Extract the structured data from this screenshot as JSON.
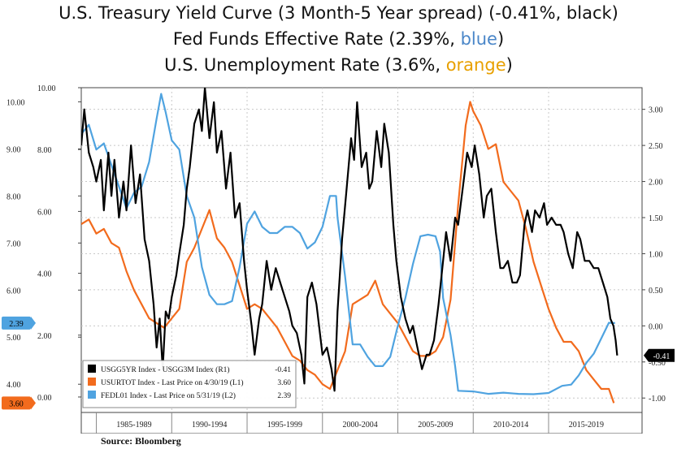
{
  "titles": {
    "line1": "U.S. Treasury Yield Curve (3 Month-5 Year spread) (-0.41%, black)",
    "line2_prefix": "Fed Funds Effective Rate (2.39%, ",
    "line2_highlight": "blue",
    "line2_suffix": ")",
    "line3_prefix": "U.S. Unemployment Rate (3.6%, ",
    "line3_highlight": "orange",
    "line3_suffix": ")"
  },
  "source": "Source: Bloomberg",
  "chart_data": {
    "type": "line",
    "title": "",
    "x_range": [
      1984.0,
      2021.2
    ],
    "x_labels": [
      "1985-1989",
      "1990-1994",
      "1995-1999",
      "2000-2004",
      "2005-2009",
      "2010-2014",
      "2015-2019"
    ],
    "left_axis_unemployment": {
      "range": [
        3.4,
        10.3
      ],
      "ticks": [
        "10.00",
        "9.00",
        "8.00",
        "7.00",
        "6.00",
        "5.00",
        "4.00"
      ]
    },
    "left_axis_fedfunds": {
      "range": [
        -0.5,
        10.0
      ],
      "ticks": [
        "10.00",
        "8.00",
        "6.00",
        "4.00",
        "2.00",
        "0.00"
      ]
    },
    "right_axis_spread": {
      "range": [
        -1.2,
        3.3
      ],
      "ticks": [
        "3.00",
        "2.50",
        "2.00",
        "1.50",
        "1.00",
        "0.50",
        "0.00",
        "-0.50",
        "-1.00"
      ]
    },
    "grid": true,
    "legend_position": "bottom-left",
    "last_value_tags": {
      "fedfunds": "2.39",
      "unemployment": "3.60",
      "spread": "-0.41"
    },
    "legend": [
      {
        "label": "USGG5YR Index - USGG3M Index (R1)",
        "value": "-0.41",
        "color": "#000000"
      },
      {
        "label": "USURTOT Index - Last Price on 4/30/19 (L1)",
        "value": "3.60",
        "color": "#f26b1d"
      },
      {
        "label": "FEDL01 Index - Last Price on 5/31/19 (L2)",
        "value": "2.39",
        "color": "#4fa3e0"
      }
    ],
    "series": [
      {
        "name": "USGG5YR Index - USGG3M Index",
        "axis": "right",
        "color": "#000000",
        "points": [
          [
            1984.0,
            2.5
          ],
          [
            1984.2,
            3.0
          ],
          [
            1984.5,
            2.4
          ],
          [
            1984.8,
            2.2
          ],
          [
            1985.0,
            2.0
          ],
          [
            1985.3,
            2.3
          ],
          [
            1985.5,
            1.6
          ],
          [
            1985.8,
            2.4
          ],
          [
            1986.0,
            1.8
          ],
          [
            1986.2,
            2.3
          ],
          [
            1986.5,
            1.5
          ],
          [
            1986.8,
            2.0
          ],
          [
            1987.0,
            1.6
          ],
          [
            1987.3,
            2.5
          ],
          [
            1987.6,
            1.7
          ],
          [
            1987.9,
            2.1
          ],
          [
            1988.2,
            1.2
          ],
          [
            1988.5,
            0.9
          ],
          [
            1988.8,
            0.3
          ],
          [
            1989.0,
            -0.3
          ],
          [
            1989.2,
            0.1
          ],
          [
            1989.4,
            -0.6
          ],
          [
            1989.6,
            0.2
          ],
          [
            1989.8,
            0.1
          ],
          [
            1990.0,
            0.4
          ],
          [
            1990.3,
            0.7
          ],
          [
            1990.5,
            1.0
          ],
          [
            1990.8,
            1.4
          ],
          [
            1991.0,
            1.9
          ],
          [
            1991.2,
            2.2
          ],
          [
            1991.5,
            2.8
          ],
          [
            1991.8,
            3.0
          ],
          [
            1992.0,
            2.7
          ],
          [
            1992.2,
            3.3
          ],
          [
            1992.5,
            2.6
          ],
          [
            1992.8,
            3.1
          ],
          [
            1993.0,
            2.4
          ],
          [
            1993.3,
            2.7
          ],
          [
            1993.6,
            1.9
          ],
          [
            1993.9,
            2.4
          ],
          [
            1994.2,
            1.5
          ],
          [
            1994.5,
            1.7
          ],
          [
            1994.8,
            0.9
          ],
          [
            1995.0,
            0.5
          ],
          [
            1995.3,
            0.0
          ],
          [
            1995.5,
            -0.4
          ],
          [
            1995.8,
            0.1
          ],
          [
            1996.0,
            0.3
          ],
          [
            1996.3,
            0.9
          ],
          [
            1996.6,
            0.5
          ],
          [
            1996.9,
            0.8
          ],
          [
            1997.2,
            0.6
          ],
          [
            1997.5,
            0.4
          ],
          [
            1997.8,
            0.2
          ],
          [
            1998.0,
            0.0
          ],
          [
            1998.3,
            -0.1
          ],
          [
            1998.6,
            -0.4
          ],
          [
            1998.8,
            -0.8
          ],
          [
            1999.0,
            0.4
          ],
          [
            1999.3,
            0.6
          ],
          [
            1999.6,
            0.3
          ],
          [
            2000.0,
            -0.4
          ],
          [
            2000.3,
            -0.3
          ],
          [
            2000.6,
            -0.6
          ],
          [
            2000.8,
            -0.9
          ],
          [
            2001.0,
            0.2
          ],
          [
            2001.3,
            1.2
          ],
          [
            2001.6,
            1.9
          ],
          [
            2001.9,
            2.6
          ],
          [
            2002.1,
            2.3
          ],
          [
            2002.3,
            3.1
          ],
          [
            2002.6,
            2.2
          ],
          [
            2002.9,
            2.4
          ],
          [
            2003.1,
            1.9
          ],
          [
            2003.3,
            2.0
          ],
          [
            2003.6,
            2.7
          ],
          [
            2003.9,
            2.2
          ],
          [
            2004.1,
            2.8
          ],
          [
            2004.4,
            2.4
          ],
          [
            2004.7,
            1.4
          ],
          [
            2004.9,
            0.9
          ],
          [
            2005.2,
            0.4
          ],
          [
            2005.5,
            0.1
          ],
          [
            2005.8,
            -0.1
          ],
          [
            2006.0,
            0.0
          ],
          [
            2006.3,
            -0.3
          ],
          [
            2006.6,
            -0.6
          ],
          [
            2006.9,
            -0.4
          ],
          [
            2007.1,
            -0.4
          ],
          [
            2007.4,
            -0.2
          ],
          [
            2007.7,
            0.3
          ],
          [
            2008.0,
            0.9
          ],
          [
            2008.2,
            1.3
          ],
          [
            2008.5,
            0.9
          ],
          [
            2008.8,
            1.5
          ],
          [
            2009.0,
            1.4
          ],
          [
            2009.3,
            1.9
          ],
          [
            2009.6,
            2.4
          ],
          [
            2009.9,
            2.2
          ],
          [
            2010.1,
            2.5
          ],
          [
            2010.4,
            2.1
          ],
          [
            2010.7,
            1.5
          ],
          [
            2010.9,
            1.8
          ],
          [
            2011.2,
            1.9
          ],
          [
            2011.5,
            1.3
          ],
          [
            2011.8,
            0.8
          ],
          [
            2012.0,
            0.8
          ],
          [
            2012.3,
            0.9
          ],
          [
            2012.6,
            0.6
          ],
          [
            2012.9,
            0.6
          ],
          [
            2013.1,
            0.7
          ],
          [
            2013.4,
            1.4
          ],
          [
            2013.6,
            1.6
          ],
          [
            2013.9,
            1.3
          ],
          [
            2014.1,
            1.6
          ],
          [
            2014.4,
            1.5
          ],
          [
            2014.7,
            1.7
          ],
          [
            2014.9,
            1.4
          ],
          [
            2015.2,
            1.5
          ],
          [
            2015.5,
            1.4
          ],
          [
            2015.8,
            1.4
          ],
          [
            2016.0,
            1.3
          ],
          [
            2016.3,
            1.0
          ],
          [
            2016.6,
            0.8
          ],
          [
            2016.9,
            1.3
          ],
          [
            2017.1,
            1.2
          ],
          [
            2017.4,
            0.9
          ],
          [
            2017.7,
            0.9
          ],
          [
            2018.0,
            0.8
          ],
          [
            2018.3,
            0.8
          ],
          [
            2018.6,
            0.6
          ],
          [
            2018.9,
            0.4
          ],
          [
            2019.1,
            0.1
          ],
          [
            2019.3,
            0.0
          ],
          [
            2019.45,
            -0.2
          ],
          [
            2019.55,
            -0.41
          ]
        ]
      },
      {
        "name": "USURTOT Index",
        "axis": "left-unemployment",
        "color": "#f26b1d",
        "points": [
          [
            1984.0,
            7.4
          ],
          [
            1984.5,
            7.5
          ],
          [
            1985.0,
            7.2
          ],
          [
            1985.5,
            7.3
          ],
          [
            1986.0,
            7.0
          ],
          [
            1986.5,
            6.9
          ],
          [
            1987.0,
            6.4
          ],
          [
            1987.5,
            6.0
          ],
          [
            1988.0,
            5.7
          ],
          [
            1988.5,
            5.4
          ],
          [
            1989.0,
            5.3
          ],
          [
            1989.5,
            5.2
          ],
          [
            1990.0,
            5.4
          ],
          [
            1990.5,
            5.6
          ],
          [
            1991.0,
            6.6
          ],
          [
            1991.5,
            6.9
          ],
          [
            1992.0,
            7.3
          ],
          [
            1992.5,
            7.7
          ],
          [
            1993.0,
            7.1
          ],
          [
            1993.5,
            6.9
          ],
          [
            1994.0,
            6.6
          ],
          [
            1994.5,
            6.1
          ],
          [
            1995.0,
            5.6
          ],
          [
            1995.5,
            5.7
          ],
          [
            1996.0,
            5.6
          ],
          [
            1996.5,
            5.4
          ],
          [
            1997.0,
            5.2
          ],
          [
            1997.5,
            4.9
          ],
          [
            1998.0,
            4.6
          ],
          [
            1998.5,
            4.5
          ],
          [
            1999.0,
            4.3
          ],
          [
            1999.5,
            4.2
          ],
          [
            2000.0,
            4.0
          ],
          [
            2000.5,
            3.9
          ],
          [
            2001.0,
            4.3
          ],
          [
            2001.5,
            4.7
          ],
          [
            2002.0,
            5.7
          ],
          [
            2002.5,
            5.8
          ],
          [
            2003.0,
            5.9
          ],
          [
            2003.5,
            6.2
          ],
          [
            2004.0,
            5.7
          ],
          [
            2004.5,
            5.5
          ],
          [
            2005.0,
            5.3
          ],
          [
            2005.5,
            5.0
          ],
          [
            2006.0,
            4.7
          ],
          [
            2006.5,
            4.6
          ],
          [
            2007.0,
            4.6
          ],
          [
            2007.5,
            4.7
          ],
          [
            2008.0,
            5.0
          ],
          [
            2008.5,
            5.8
          ],
          [
            2009.0,
            7.8
          ],
          [
            2009.5,
            9.5
          ],
          [
            2009.8,
            10.0
          ],
          [
            2010.0,
            9.8
          ],
          [
            2010.5,
            9.5
          ],
          [
            2011.0,
            9.0
          ],
          [
            2011.5,
            9.1
          ],
          [
            2012.0,
            8.3
          ],
          [
            2012.5,
            8.1
          ],
          [
            2013.0,
            7.9
          ],
          [
            2013.5,
            7.3
          ],
          [
            2014.0,
            6.6
          ],
          [
            2014.5,
            6.1
          ],
          [
            2015.0,
            5.6
          ],
          [
            2015.5,
            5.2
          ],
          [
            2016.0,
            4.9
          ],
          [
            2016.5,
            4.9
          ],
          [
            2017.0,
            4.7
          ],
          [
            2017.5,
            4.3
          ],
          [
            2018.0,
            4.1
          ],
          [
            2018.5,
            3.9
          ],
          [
            2019.0,
            3.9
          ],
          [
            2019.33,
            3.6
          ]
        ]
      },
      {
        "name": "FEDL01 Index",
        "axis": "left-fedfunds",
        "color": "#4fa3e0",
        "points": [
          [
            1984.0,
            8.5
          ],
          [
            1984.5,
            8.8
          ],
          [
            1985.0,
            8.0
          ],
          [
            1985.5,
            8.2
          ],
          [
            1986.0,
            7.5
          ],
          [
            1986.5,
            6.8
          ],
          [
            1987.0,
            6.1
          ],
          [
            1987.5,
            6.6
          ],
          [
            1988.0,
            6.8
          ],
          [
            1988.5,
            7.6
          ],
          [
            1989.0,
            9.0
          ],
          [
            1989.3,
            9.8
          ],
          [
            1989.6,
            9.2
          ],
          [
            1990.0,
            8.3
          ],
          [
            1990.5,
            8.0
          ],
          [
            1991.0,
            6.5
          ],
          [
            1991.5,
            5.8
          ],
          [
            1992.0,
            4.2
          ],
          [
            1992.5,
            3.3
          ],
          [
            1993.0,
            3.0
          ],
          [
            1993.5,
            3.0
          ],
          [
            1994.0,
            3.1
          ],
          [
            1994.5,
            4.2
          ],
          [
            1995.0,
            5.6
          ],
          [
            1995.5,
            6.0
          ],
          [
            1996.0,
            5.5
          ],
          [
            1996.5,
            5.3
          ],
          [
            1997.0,
            5.3
          ],
          [
            1997.5,
            5.5
          ],
          [
            1998.0,
            5.5
          ],
          [
            1998.5,
            5.3
          ],
          [
            1999.0,
            4.8
          ],
          [
            1999.5,
            5.0
          ],
          [
            2000.0,
            5.5
          ],
          [
            2000.5,
            6.5
          ],
          [
            2000.9,
            6.5
          ],
          [
            2001.0,
            5.8
          ],
          [
            2001.5,
            3.9
          ],
          [
            2002.0,
            1.7
          ],
          [
            2002.5,
            1.7
          ],
          [
            2003.0,
            1.3
          ],
          [
            2003.5,
            1.0
          ],
          [
            2004.0,
            1.0
          ],
          [
            2004.5,
            1.3
          ],
          [
            2005.0,
            2.3
          ],
          [
            2005.5,
            3.2
          ],
          [
            2006.0,
            4.3
          ],
          [
            2006.5,
            5.2
          ],
          [
            2007.0,
            5.25
          ],
          [
            2007.5,
            5.2
          ],
          [
            2007.8,
            4.7
          ],
          [
            2008.0,
            3.2
          ],
          [
            2008.5,
            2.0
          ],
          [
            2008.8,
            1.0
          ],
          [
            2009.0,
            0.2
          ],
          [
            2010.0,
            0.18
          ],
          [
            2011.0,
            0.1
          ],
          [
            2012.0,
            0.14
          ],
          [
            2013.0,
            0.1
          ],
          [
            2014.0,
            0.09
          ],
          [
            2015.0,
            0.13
          ],
          [
            2015.9,
            0.36
          ],
          [
            2016.5,
            0.4
          ],
          [
            2017.0,
            0.7
          ],
          [
            2017.5,
            1.1
          ],
          [
            2018.0,
            1.4
          ],
          [
            2018.5,
            1.9
          ],
          [
            2019.0,
            2.4
          ],
          [
            2019.41,
            2.39
          ]
        ]
      }
    ]
  }
}
